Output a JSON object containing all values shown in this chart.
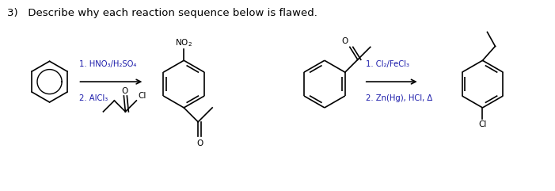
{
  "title_text": "3)   Describe why each reaction sequence below is flawed.",
  "title_fontsize": 9.5,
  "text_color": "#000000",
  "reagent_color": "#1a1aaa",
  "background": "#ffffff",
  "figsize": [
    7.01,
    2.41
  ],
  "dpi": 100,
  "reaction1_reagents_top": "1. HNO₃/H₂SO₄",
  "reaction1_reagents_bot": "2. AlCl₃",
  "reaction2_reagents_top": "1. Cl₂/FeCl₃",
  "reaction2_reagents_bot": "2. Zn(Hg), HCl, Δ",
  "no2_label": "NO$_2$",
  "o_label": "O",
  "cl_label": "Cl"
}
